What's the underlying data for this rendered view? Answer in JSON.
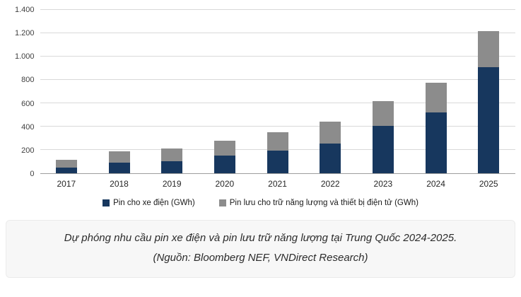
{
  "chart_data": {
    "type": "bar",
    "stacked": true,
    "title": "",
    "xlabel": "",
    "ylabel": "",
    "categories": [
      "2017",
      "2018",
      "2019",
      "2020",
      "2021",
      "2022",
      "2023",
      "2024",
      "2025"
    ],
    "series": [
      {
        "name": "Pin cho xe điện (GWh)",
        "color": "#17375e",
        "values": [
          50,
          90,
          105,
          150,
          195,
          255,
          405,
          520,
          910
        ]
      },
      {
        "name": "Pin lưu cho trữ năng lượng và thiết bị điện tử (GWh)",
        "color": "#8c8c8c",
        "values": [
          65,
          100,
          110,
          130,
          155,
          185,
          215,
          255,
          310
        ]
      }
    ],
    "ylim": [
      0,
      1400
    ],
    "ytick_step": 200,
    "ytick_labels": [
      "0",
      "200",
      "400",
      "600",
      "800",
      "1.000",
      "1.200",
      "1.400"
    ],
    "grid": true,
    "legend_position": "bottom"
  },
  "caption": {
    "line1": "Dự phóng nhu cầu pin xe điện và pin lưu trữ năng lượng tại Trung Quốc 2024-2025.",
    "line2": "(Nguồn: Bloomberg NEF, VNDirect Research)"
  }
}
